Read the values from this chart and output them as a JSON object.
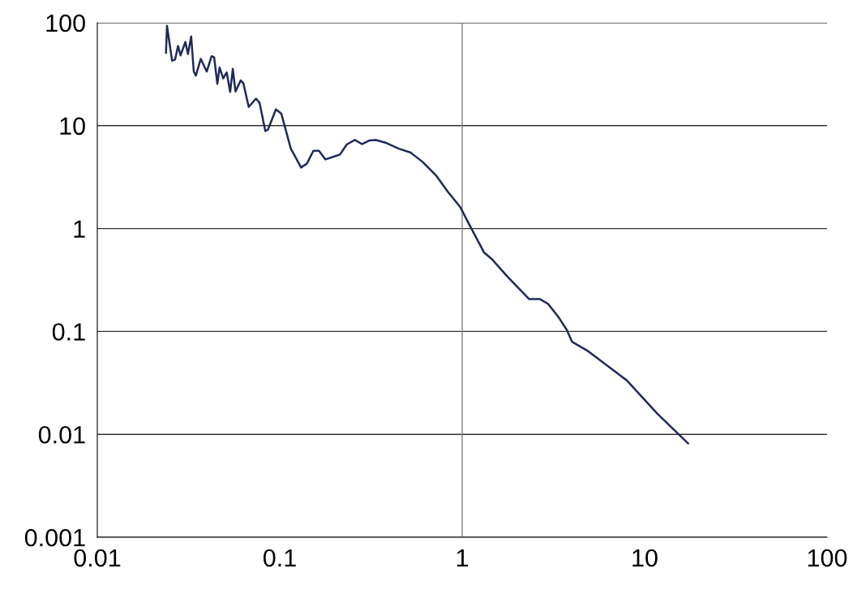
{
  "chart_data": {
    "type": "line",
    "log": "xy",
    "grid": "y",
    "marker": "none",
    "line_style": "solid",
    "xlim": [
      0.01,
      100
    ],
    "xticks": [
      0.01,
      0.1,
      1,
      10,
      100
    ],
    "ylim": [
      0.001,
      100
    ],
    "yticks": [
      0.001,
      0.01,
      0.1,
      1,
      10,
      100
    ],
    "ref_lines": [
      {
        "axis": "x",
        "value": 1,
        "color": "#808080"
      }
    ],
    "series": [
      {
        "color": "#1f2a5a",
        "x": [
          0.0238,
          0.0241,
          0.0257,
          0.0267,
          0.0277,
          0.0286,
          0.0304,
          0.0314,
          0.0327,
          0.0338,
          0.0347,
          0.0369,
          0.0398,
          0.0423,
          0.0437,
          0.0455,
          0.0468,
          0.049,
          0.0512,
          0.0535,
          0.0553,
          0.0572,
          0.0611,
          0.0632,
          0.0676,
          0.0741,
          0.0775,
          0.0834,
          0.0862,
          0.0953,
          0.102,
          0.115,
          0.131,
          0.141,
          0.153,
          0.164,
          0.178,
          0.207,
          0.214,
          0.233,
          0.258,
          0.282,
          0.31,
          0.337,
          0.379,
          0.449,
          0.522,
          0.608,
          0.72,
          0.836,
          0.973,
          1.11,
          1.32,
          1.46,
          1.75,
          2.33,
          2.67,
          2.96,
          3.38,
          3.74,
          4.0,
          4.9,
          6.41,
          7.98,
          11.7,
          17.3
        ],
        "values": [
          51.2,
          93.5,
          42.7,
          44.0,
          59.4,
          48.2,
          65.0,
          49.6,
          73.5,
          33.5,
          30.6,
          44.5,
          33.5,
          47.3,
          46.1,
          25.5,
          36.7,
          28.8,
          32.9,
          21.3,
          35.6,
          21.5,
          27.5,
          25.8,
          15.2,
          18.3,
          16.7,
          8.85,
          9.14,
          14.4,
          13.1,
          5.98,
          3.92,
          4.29,
          5.7,
          5.7,
          4.7,
          5.14,
          5.24,
          6.56,
          7.26,
          6.62,
          7.18,
          7.26,
          6.84,
          5.98,
          5.47,
          4.43,
          3.27,
          2.27,
          1.63,
          1.04,
          0.583,
          0.502,
          0.349,
          0.206,
          0.206,
          0.185,
          0.137,
          0.104,
          0.0794,
          0.0644,
          0.0448,
          0.0335,
          0.016,
          0.00819
        ]
      }
    ]
  }
}
